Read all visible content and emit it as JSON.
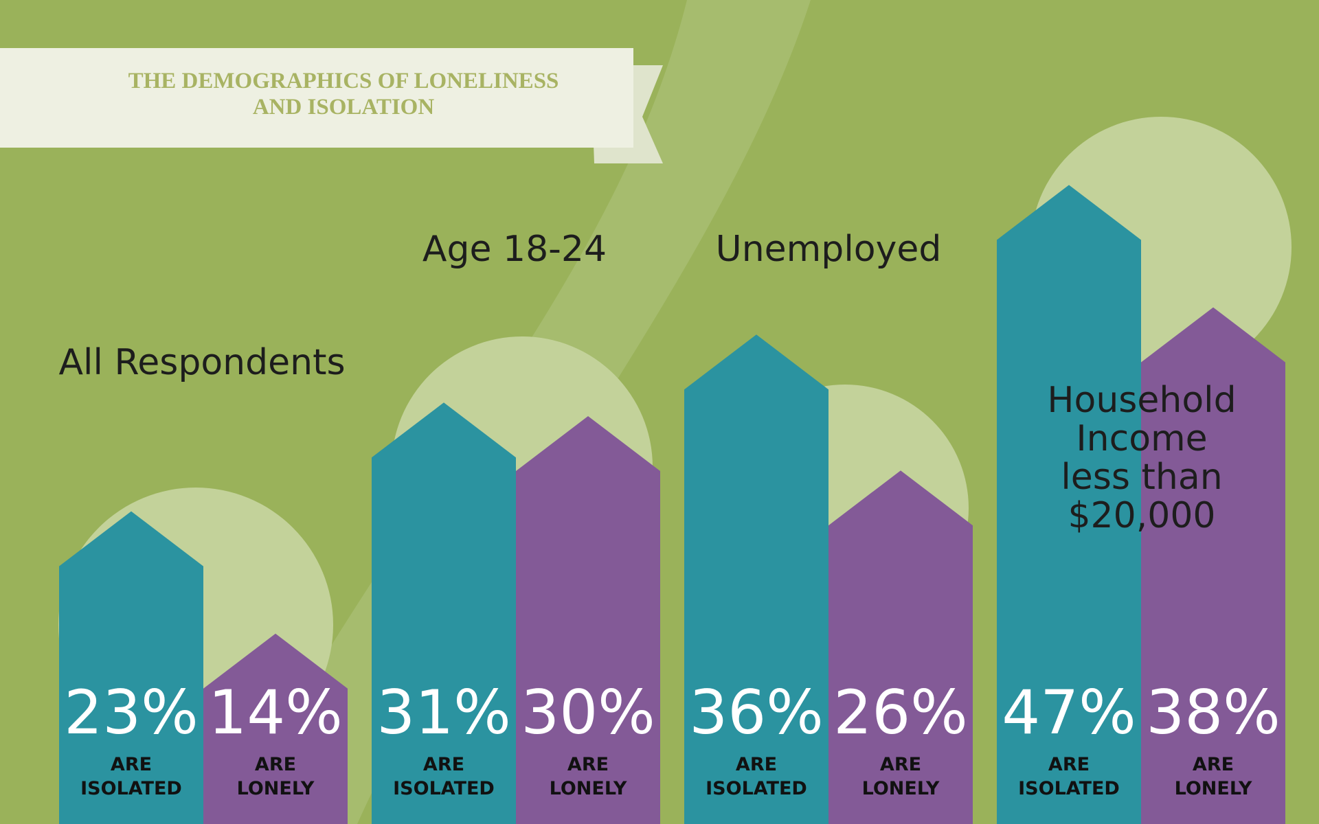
{
  "chart_data": {
    "type": "bar",
    "title": "THE DEMOGRAPHICS OF LONELINESS AND ISOLATION",
    "categories": [
      "All Respondents",
      "Age 18-24",
      "Unemployed",
      "Household Income less than $20,000"
    ],
    "series": [
      {
        "name": "ARE ISOLATED",
        "color": "#2b93a0",
        "values": [
          23,
          31,
          36,
          47
        ],
        "value_labels": [
          "23%",
          "31%",
          "36%",
          "47%"
        ]
      },
      {
        "name": "ARE LONELY",
        "color": "#835a97",
        "values": [
          14,
          30,
          26,
          38
        ],
        "value_labels": [
          "14%",
          "30%",
          "26%",
          "38%"
        ]
      }
    ]
  }
}
